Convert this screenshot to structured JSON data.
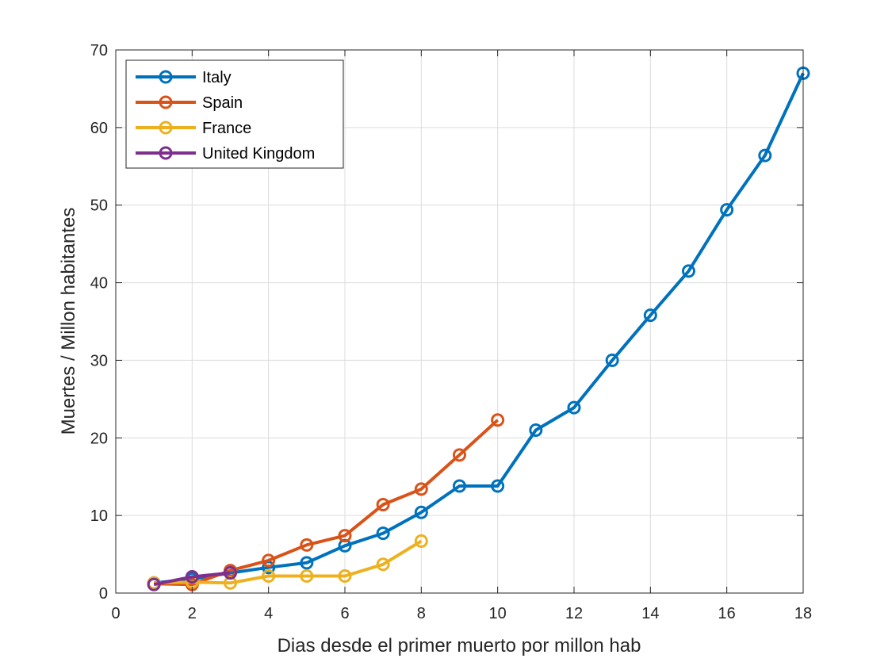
{
  "chart_data": {
    "type": "line",
    "title": "",
    "xlabel": "Dias desde el primer muerto por millon hab",
    "ylabel": "Muertes / Millon habitantes",
    "xlim": [
      0,
      18
    ],
    "ylim": [
      0,
      70
    ],
    "xticks": [
      0,
      2,
      4,
      6,
      8,
      10,
      12,
      14,
      16,
      18
    ],
    "yticks": [
      0,
      10,
      20,
      30,
      40,
      50,
      60,
      70
    ],
    "grid": true,
    "legend_position": "top-left",
    "marker": "circle",
    "series": [
      {
        "name": "Italy",
        "color": "#0072BD",
        "x": [
          1,
          2,
          3,
          4,
          5,
          6,
          7,
          8,
          9,
          10,
          11,
          12,
          13,
          14,
          15,
          16,
          17,
          18
        ],
        "y": [
          1.3,
          1.8,
          2.6,
          3.3,
          3.9,
          6.1,
          7.7,
          10.4,
          13.8,
          13.8,
          21.0,
          23.9,
          30.0,
          35.8,
          41.5,
          49.4,
          56.4,
          67.0
        ]
      },
      {
        "name": "Spain",
        "color": "#D95319",
        "x": [
          1,
          2,
          3,
          4,
          5,
          6,
          7,
          8,
          9,
          10
        ],
        "y": [
          1.2,
          1.1,
          2.9,
          4.2,
          6.2,
          7.4,
          11.4,
          13.4,
          17.8,
          22.3
        ]
      },
      {
        "name": "France",
        "color": "#EDB120",
        "x": [
          1,
          2,
          3,
          4,
          5,
          6,
          7,
          8
        ],
        "y": [
          1.3,
          1.4,
          1.3,
          2.2,
          2.2,
          2.2,
          3.7,
          6.7
        ]
      },
      {
        "name": "United Kingdom",
        "color": "#7E2F8E",
        "x": [
          1,
          2,
          3
        ],
        "y": [
          1.1,
          2.1,
          2.6
        ]
      }
    ]
  }
}
